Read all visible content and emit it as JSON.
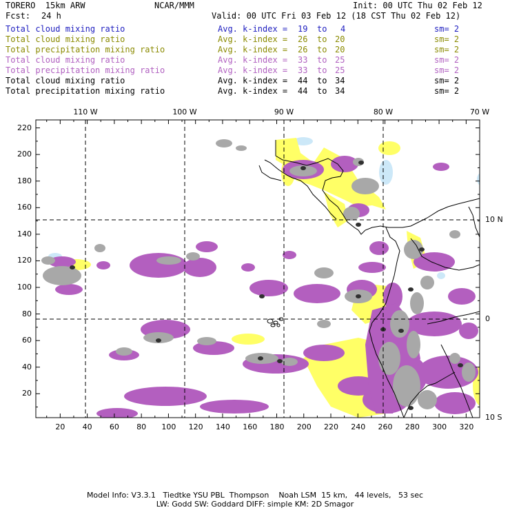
{
  "header": {
    "model": "TORERO  15km ARW",
    "center": "NCAR/MMM",
    "init": "Init: 00 UTC Thu 02 Feb 12",
    "fcst_label": "Fcst:",
    "fcst_value": "24 h",
    "valid": "Valid: 00 UTC Fri 03 Feb 12 (18 CST Thu 02 Feb 12)"
  },
  "fields": [
    {
      "name": "Total cloud mixing ratio",
      "stat": "Avg. k-index =",
      "from": "19",
      "to": "to",
      "end": "4",
      "sm": "sm= 2",
      "color": "#2020c0"
    },
    {
      "name": "Total cloud mixing ratio",
      "stat": "Avg. k-index =",
      "from": "26",
      "to": "to",
      "end": "20",
      "sm": "sm= 2",
      "color": "#8a8a00"
    },
    {
      "name": "Total precipitation mixing ratio",
      "stat": "Avg. k-index =",
      "from": "26",
      "to": "to",
      "end": "20",
      "sm": "sm= 2",
      "color": "#8a8a00"
    },
    {
      "name": "Total cloud mixing ratio",
      "stat": "Avg. k-index =",
      "from": "33",
      "to": "to",
      "end": "25",
      "sm": "sm= 2",
      "color": "#b060c0"
    },
    {
      "name": "Total precipitation mixing ratio",
      "stat": "Avg. k-index =",
      "from": "33",
      "to": "to",
      "end": "25",
      "sm": "sm= 2",
      "color": "#b060c0"
    },
    {
      "name": "Total cloud mixing ratio",
      "stat": "Avg. k-index =",
      "from": "44",
      "to": "to",
      "end": "34",
      "sm": "sm= 2",
      "color": "#000000"
    },
    {
      "name": "Total precipitation mixing ratio",
      "stat": "Avg. k-index =",
      "from": "44",
      "to": "to",
      "end": "34",
      "sm": "sm= 2",
      "color": "#000000"
    }
  ],
  "map": {
    "x_ticks": [
      "20",
      "40",
      "60",
      "80",
      "100",
      "120",
      "140",
      "160",
      "180",
      "200",
      "220",
      "240",
      "260",
      "280",
      "300",
      "320"
    ],
    "y_ticks": [
      "20",
      "40",
      "60",
      "80",
      "100",
      "120",
      "140",
      "160",
      "180",
      "200",
      "220"
    ],
    "lon_labels": [
      "110 W",
      "100 W",
      "90 W",
      "80 W",
      "70 W"
    ],
    "lat_labels": [
      "10 N",
      "0",
      "10 S"
    ],
    "colors": {
      "cloud_light": "#cce8f8",
      "cloud_yellow": "#ffff66",
      "purple": "#b35fbf",
      "gray": "#a8a8a8",
      "dark": "#303030"
    }
  },
  "footer": {
    "line1": "Model Info: V3.3.1   Tiedtke YSU PBL  Thompson    Noah LSM  15 km,   44 levels,   53 sec",
    "line2": "LW: Godd SW: Goddard DIFF: simple KM: 2D Smagor"
  }
}
